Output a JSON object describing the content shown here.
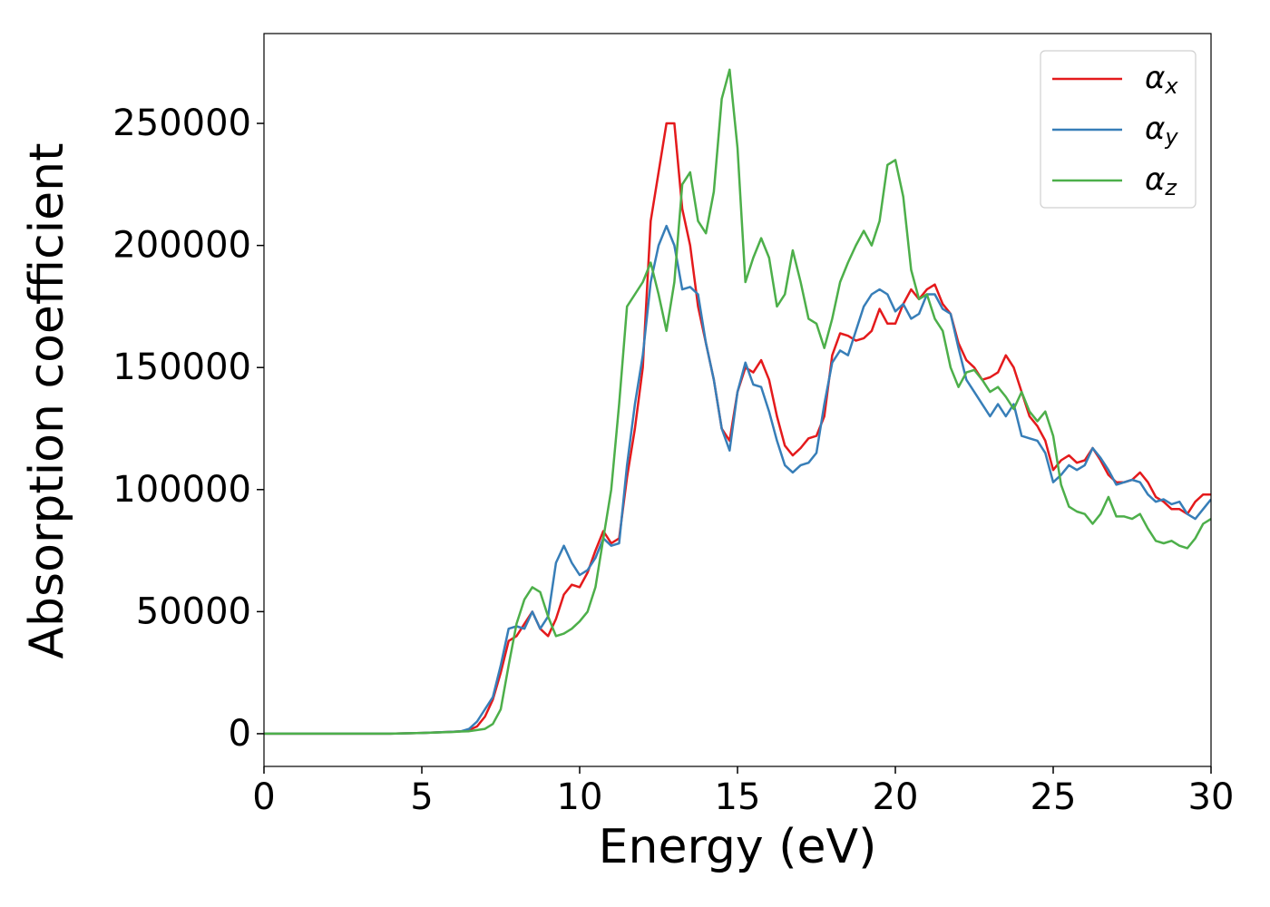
{
  "chart_data": {
    "type": "line",
    "x_label": "Energy (eV)",
    "y_label": "Absorption coefficient",
    "xlim": [
      0,
      30
    ],
    "xticks": [
      0,
      5,
      10,
      15,
      20,
      25,
      30
    ],
    "ylim": [
      -13400,
      286800
    ],
    "yticks": [
      0,
      50000,
      100000,
      150000,
      200000,
      250000
    ],
    "legend": "upper right",
    "x": [
      0,
      2,
      4,
      5,
      6,
      6.25,
      6.5,
      6.75,
      7,
      7.25,
      7.5,
      7.75,
      8,
      8.25,
      8.5,
      8.75,
      9,
      9.25,
      9.5,
      9.75,
      10,
      10.25,
      10.5,
      10.75,
      11,
      11.25,
      11.5,
      11.75,
      12,
      12.25,
      12.5,
      12.75,
      13,
      13.25,
      13.5,
      13.75,
      14,
      14.25,
      14.5,
      14.75,
      15,
      15.25,
      15.5,
      15.75,
      16,
      16.25,
      16.5,
      16.75,
      17,
      17.25,
      17.5,
      17.75,
      18,
      18.25,
      18.5,
      18.75,
      19,
      19.25,
      19.5,
      19.75,
      20,
      20.25,
      20.5,
      20.75,
      21,
      21.25,
      21.5,
      21.75,
      22,
      22.25,
      22.5,
      22.75,
      23,
      23.25,
      23.5,
      23.75,
      24,
      24.25,
      24.5,
      24.75,
      25,
      25.25,
      25.5,
      25.75,
      26,
      26.25,
      26.5,
      26.75,
      27,
      27.25,
      27.5,
      27.75,
      28,
      28.25,
      28.5,
      28.75,
      29,
      29.25,
      29.5,
      29.75,
      30
    ],
    "series": [
      {
        "name": "αx",
        "color": "#e41a1c",
        "values": [
          0,
          0,
          0,
          300,
          800,
          1000,
          1500,
          3000,
          7000,
          14000,
          25000,
          38000,
          40000,
          45000,
          50000,
          43000,
          40000,
          47000,
          57000,
          61000,
          60000,
          66000,
          75000,
          83000,
          78000,
          80000,
          105000,
          125000,
          150000,
          210000,
          230000,
          250000,
          250000,
          215000,
          200000,
          175000,
          160000,
          145000,
          125000,
          120000,
          140000,
          150000,
          148000,
          153000,
          145000,
          130000,
          118000,
          114000,
          117000,
          121000,
          122000,
          130000,
          155000,
          164000,
          163000,
          161000,
          162000,
          165000,
          174000,
          168000,
          168000,
          176000,
          182000,
          178000,
          182000,
          184000,
          176000,
          172000,
          160000,
          153000,
          150000,
          145000,
          146000,
          148000,
          155000,
          150000,
          140000,
          130000,
          126000,
          120000,
          108000,
          112000,
          114000,
          111000,
          112000,
          117000,
          112000,
          106000,
          103000,
          103000,
          104000,
          107000,
          103000,
          97000,
          95000,
          92000,
          92000,
          90000,
          95000,
          98000,
          98000
        ]
      },
      {
        "name": "αy",
        "color": "#377eb8",
        "values": [
          0,
          0,
          0,
          300,
          800,
          1000,
          2000,
          5000,
          10000,
          15000,
          28000,
          43000,
          44000,
          43000,
          50000,
          43000,
          48000,
          70000,
          77000,
          70000,
          65000,
          67000,
          72000,
          80000,
          77000,
          78000,
          110000,
          135000,
          155000,
          185000,
          200000,
          208000,
          200000,
          182000,
          183000,
          180000,
          160000,
          145000,
          125000,
          116000,
          140000,
          152000,
          143000,
          142000,
          132000,
          120000,
          110000,
          107000,
          110000,
          111000,
          115000,
          135000,
          152000,
          157000,
          155000,
          165000,
          175000,
          180000,
          182000,
          180000,
          173000,
          176000,
          170000,
          172000,
          180000,
          180000,
          174000,
          172000,
          158000,
          145000,
          140000,
          135000,
          130000,
          135000,
          130000,
          135000,
          122000,
          121000,
          120000,
          115000,
          103000,
          106000,
          110000,
          108000,
          110000,
          117000,
          113000,
          108000,
          102000,
          103000,
          104000,
          103000,
          98000,
          95000,
          96000,
          94000,
          95000,
          90000,
          88000,
          92000,
          96000
        ]
      },
      {
        "name": "αz",
        "color": "#4daf4a",
        "values": [
          0,
          0,
          0,
          300,
          700,
          900,
          1000,
          1500,
          2000,
          4000,
          10000,
          28000,
          45000,
          55000,
          60000,
          58000,
          48000,
          40000,
          41000,
          43000,
          46000,
          50000,
          60000,
          80000,
          100000,
          135000,
          175000,
          180000,
          185000,
          193000,
          180000,
          165000,
          185000,
          225000,
          230000,
          210000,
          205000,
          222000,
          260000,
          272000,
          240000,
          185000,
          195000,
          203000,
          195000,
          175000,
          180000,
          198000,
          185000,
          170000,
          168000,
          158000,
          170000,
          185000,
          193000,
          200000,
          206000,
          200000,
          210000,
          233000,
          235000,
          220000,
          190000,
          178000,
          180000,
          170000,
          165000,
          150000,
          142000,
          148000,
          149000,
          145000,
          140000,
          142000,
          138000,
          133000,
          140000,
          132000,
          128000,
          132000,
          122000,
          102000,
          93000,
          91000,
          90000,
          86000,
          90000,
          97000,
          89000,
          89000,
          88000,
          90000,
          84000,
          79000,
          78000,
          79000,
          77000,
          76000,
          80000,
          86000,
          88000
        ]
      }
    ]
  }
}
